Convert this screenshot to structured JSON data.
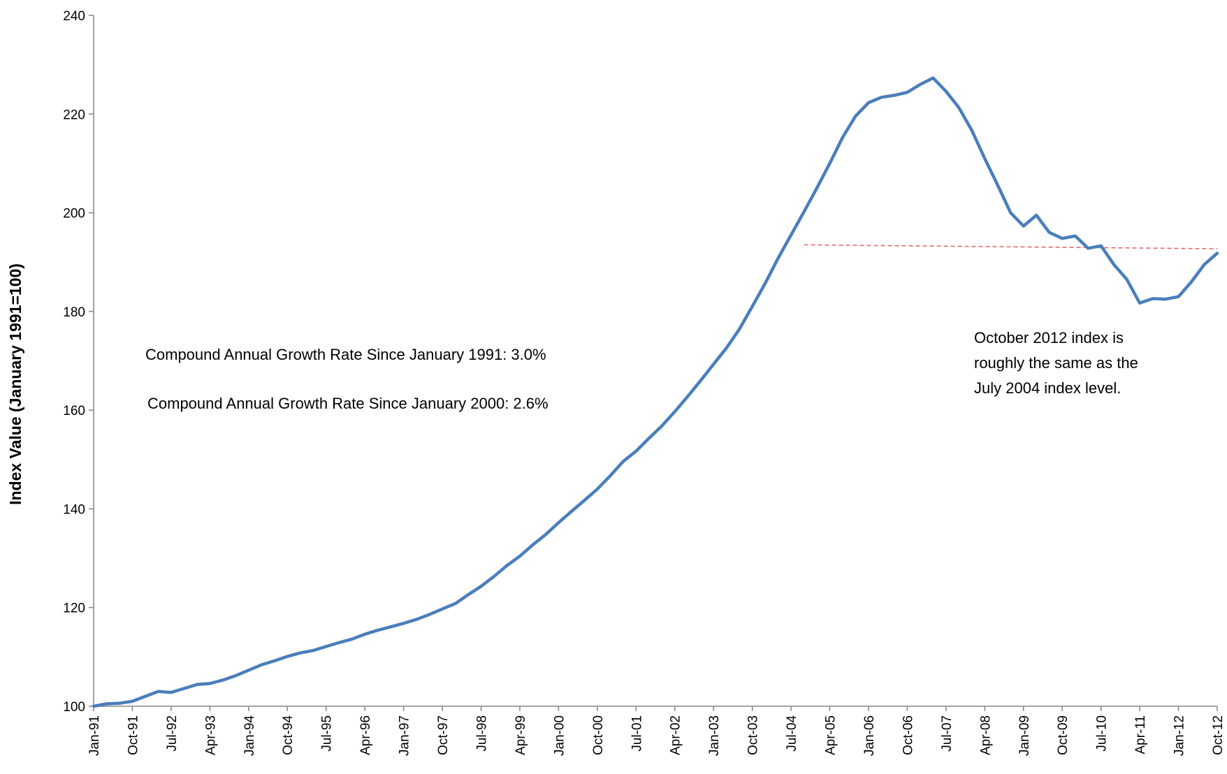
{
  "chart_data": {
    "type": "line",
    "title": "",
    "xlabel": "",
    "ylabel": "Index Value (January 1991=100)",
    "ylim": [
      100,
      240
    ],
    "yticks": [
      100,
      120,
      140,
      160,
      180,
      200,
      220,
      240
    ],
    "grid": false,
    "legend": "none",
    "x_tick_labels": [
      "Jan-91",
      "Oct-91",
      "Jul-92",
      "Apr-93",
      "Jan-94",
      "Oct-94",
      "Jul-95",
      "Apr-96",
      "Jan-97",
      "Oct-97",
      "Jul-98",
      "Apr-99",
      "Jan-00",
      "Oct-00",
      "Jul-01",
      "Apr-02",
      "Jan-03",
      "Oct-03",
      "Jul-04",
      "Apr-05",
      "Jan-06",
      "Oct-06",
      "Jul-07",
      "Apr-08",
      "Jan-09",
      "Oct-09",
      "Jul-10",
      "Apr-11",
      "Jan-12",
      "Oct-12"
    ],
    "series": [
      {
        "color": "#4a7ebb",
        "points": [
          [
            "Jan-91",
            100
          ],
          [
            "Apr-91",
            100.5
          ],
          [
            "Jul-91",
            100.6
          ],
          [
            "Oct-91",
            101
          ],
          [
            "Jan-92",
            102
          ],
          [
            "Apr-92",
            103
          ],
          [
            "Jul-92",
            102.8
          ],
          [
            "Oct-92",
            103.6
          ],
          [
            "Jan-93",
            104.4
          ],
          [
            "Apr-93",
            104.6
          ],
          [
            "Jul-93",
            105.3
          ],
          [
            "Oct-93",
            106.2
          ],
          [
            "Jan-94",
            107.3
          ],
          [
            "Apr-94",
            108.4
          ],
          [
            "Jul-94",
            109.2
          ],
          [
            "Oct-94",
            110.1
          ],
          [
            "Jan-95",
            110.8
          ],
          [
            "Apr-95",
            111.3
          ],
          [
            "Jul-95",
            112.1
          ],
          [
            "Oct-95",
            112.9
          ],
          [
            "Jan-96",
            113.6
          ],
          [
            "Apr-96",
            114.6
          ],
          [
            "Jul-96",
            115.4
          ],
          [
            "Oct-96",
            116.1
          ],
          [
            "Jan-97",
            116.8
          ],
          [
            "Apr-97",
            117.6
          ],
          [
            "Jul-97",
            118.6
          ],
          [
            "Oct-97",
            119.7
          ],
          [
            "Jan-98",
            120.8
          ],
          [
            "Apr-98",
            122.6
          ],
          [
            "Jul-98",
            124.3
          ],
          [
            "Oct-98",
            126.3
          ],
          [
            "Jan-99",
            128.5
          ],
          [
            "Apr-99",
            130.4
          ],
          [
            "Jul-99",
            132.7
          ],
          [
            "Oct-99",
            134.8
          ],
          [
            "Jan-00",
            137.2
          ],
          [
            "Apr-00",
            139.5
          ],
          [
            "Jul-00",
            141.7
          ],
          [
            "Oct-00",
            144
          ],
          [
            "Jan-01",
            146.7
          ],
          [
            "Apr-01",
            149.6
          ],
          [
            "Jul-01",
            151.7
          ],
          [
            "Oct-01",
            154.3
          ],
          [
            "Jan-02",
            156.8
          ],
          [
            "Apr-02",
            159.7
          ],
          [
            "Jul-02",
            162.8
          ],
          [
            "Oct-02",
            166
          ],
          [
            "Jan-03",
            169.3
          ],
          [
            "Apr-03",
            172.6
          ],
          [
            "Jul-03",
            176.4
          ],
          [
            "Oct-03",
            181
          ],
          [
            "Jan-04",
            185.7
          ],
          [
            "Apr-04",
            190.8
          ],
          [
            "Jul-04",
            195.5
          ],
          [
            "Oct-04",
            200.2
          ],
          [
            "Jan-05",
            205
          ],
          [
            "Apr-05",
            210
          ],
          [
            "Jul-05",
            215.3
          ],
          [
            "Oct-05",
            219.6
          ],
          [
            "Jan-06",
            222.3
          ],
          [
            "Apr-06",
            223.4
          ],
          [
            "Jul-06",
            223.8
          ],
          [
            "Oct-06",
            224.4
          ],
          [
            "Jan-07",
            226
          ],
          [
            "Apr-07",
            227.3
          ],
          [
            "Jul-07",
            224.6
          ],
          [
            "Oct-07",
            221.3
          ],
          [
            "Jan-08",
            216.7
          ],
          [
            "Apr-08",
            211
          ],
          [
            "Jul-08",
            205.6
          ],
          [
            "Oct-08",
            200
          ],
          [
            "Jan-09",
            197.3
          ],
          [
            "Apr-09",
            199.5
          ],
          [
            "Jul-09",
            196
          ],
          [
            "Oct-09",
            194.8
          ],
          [
            "Jan-10",
            195.3
          ],
          [
            "Apr-10",
            192.8
          ],
          [
            "Jul-10",
            193.3
          ],
          [
            "Oct-10",
            189.5
          ],
          [
            "Jan-11",
            186.5
          ],
          [
            "Apr-11",
            181.7
          ],
          [
            "Jul-11",
            182.6
          ],
          [
            "Oct-11",
            182.5
          ],
          [
            "Jan-12",
            183
          ],
          [
            "Apr-12",
            186
          ],
          [
            "Jul-12",
            189.5
          ],
          [
            "Oct-12",
            191.8
          ]
        ]
      }
    ],
    "reference_line": {
      "color": "#e06c6c",
      "style": "dashed",
      "from": [
        "Oct-04",
        193.5
      ],
      "to": [
        "Oct-12",
        192.7
      ]
    },
    "annotations": [
      {
        "key": "cagr_1991",
        "text": "Compound Annual Growth Rate Since January 1991:  3.0%"
      },
      {
        "key": "cagr_2000",
        "text": "Compound Annual Growth Rate Since January 2000:  2.6%"
      },
      {
        "key": "note",
        "lines": [
          "October 2012 index is",
          "roughly the same as the",
          "July 2004 index level."
        ]
      }
    ]
  }
}
